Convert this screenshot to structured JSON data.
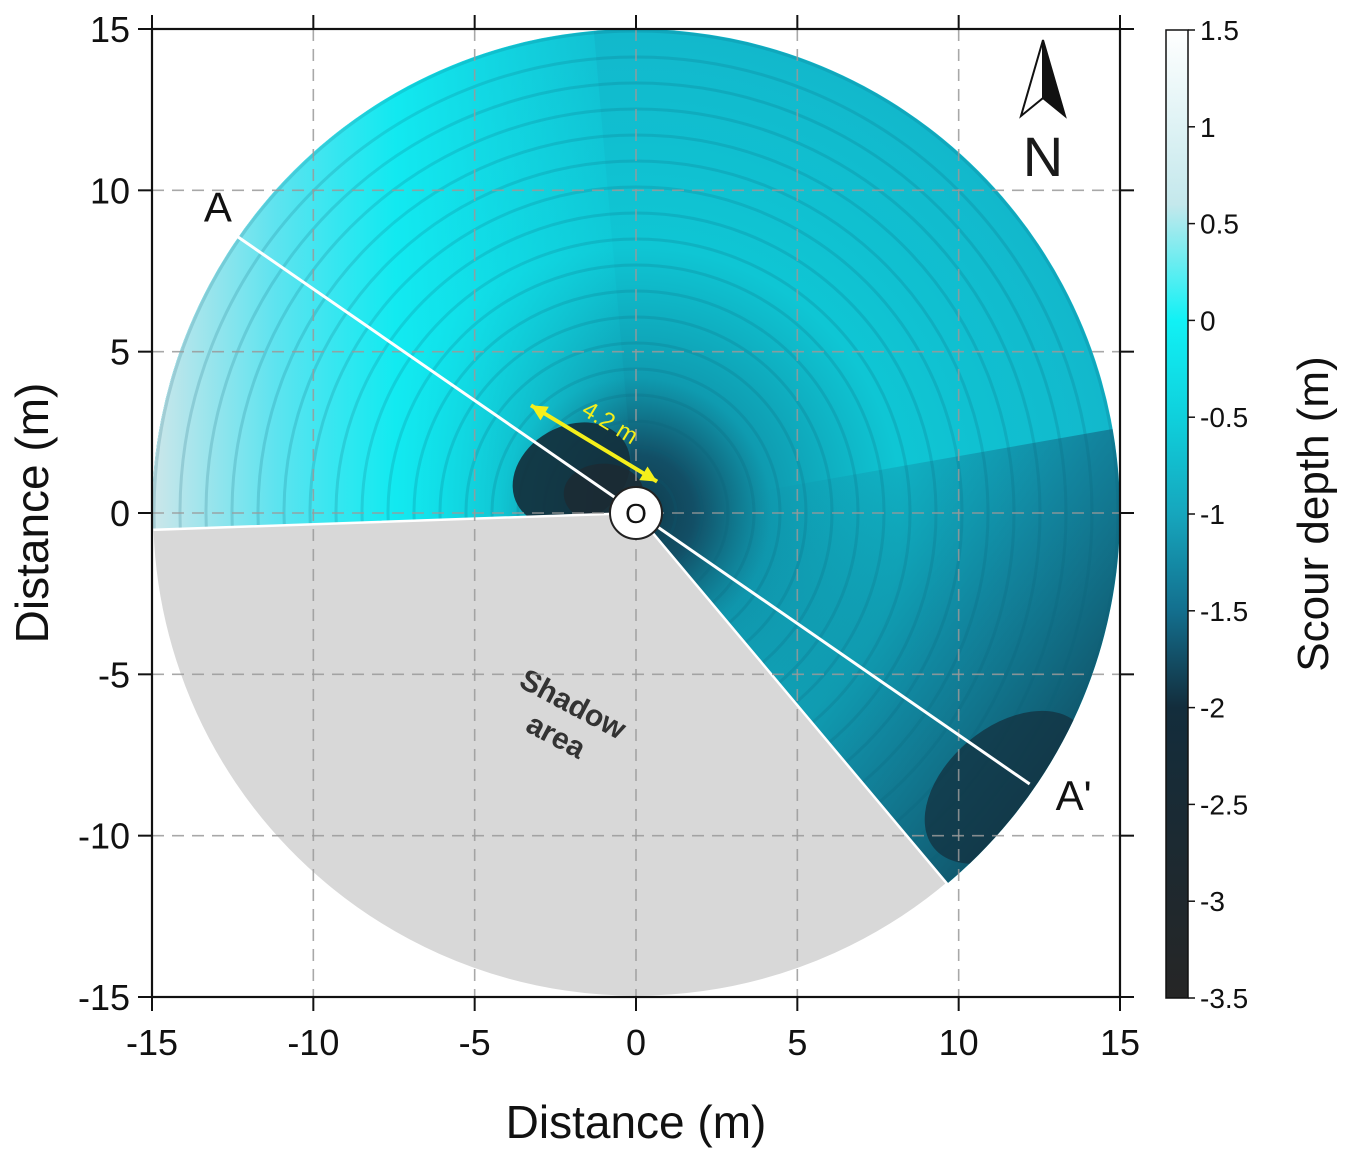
{
  "chart_data": {
    "type": "heatmap",
    "subtype": "polar-contour",
    "xlabel": "Distance (m)",
    "ylabel": "Distance (m)",
    "xlim": [
      -15,
      15
    ],
    "ylim": [
      -15,
      15
    ],
    "x_ticks": [
      -15,
      -10,
      -5,
      0,
      5,
      10,
      15
    ],
    "y_ticks": [
      15,
      10,
      5,
      0,
      -5,
      -10,
      -15
    ],
    "grid": true,
    "scan_radius": 15,
    "colorbar": {
      "label": "Scour depth (m)",
      "range": [
        -3.5,
        1.5
      ],
      "ticks": [
        1.5,
        1,
        0.5,
        0,
        -0.5,
        -1,
        -1.5,
        -2,
        -2.5,
        -3,
        -3.5
      ],
      "colors": [
        {
          "value": 1.5,
          "color": "#ffffff"
        },
        {
          "value": 0.6,
          "color": "#c4e8ec"
        },
        {
          "value": 0,
          "color": "#11f1f5"
        },
        {
          "value": -0.5,
          "color": "#0fd0dc"
        },
        {
          "value": -1,
          "color": "#16a6bd"
        },
        {
          "value": -1.5,
          "color": "#136f8e"
        },
        {
          "value": -2,
          "color": "#132d3c"
        },
        {
          "value": -3.5,
          "color": "#262626"
        }
      ]
    },
    "shadow_area": {
      "label_line1": "Shadow",
      "label_line2": "area",
      "start_angle_deg": 182,
      "end_angle_deg": 310,
      "color": "#d8d8d8"
    },
    "section_line": {
      "start_label": "A",
      "end_label": "A'",
      "start": [
        -12.4,
        8.6
      ],
      "end": [
        12.2,
        -8.4
      ]
    },
    "origin_label": "O",
    "scour_extent": {
      "label": "4.2 m",
      "length_m": 4.2,
      "color": "#f5ef1a"
    },
    "north_label": "N"
  }
}
